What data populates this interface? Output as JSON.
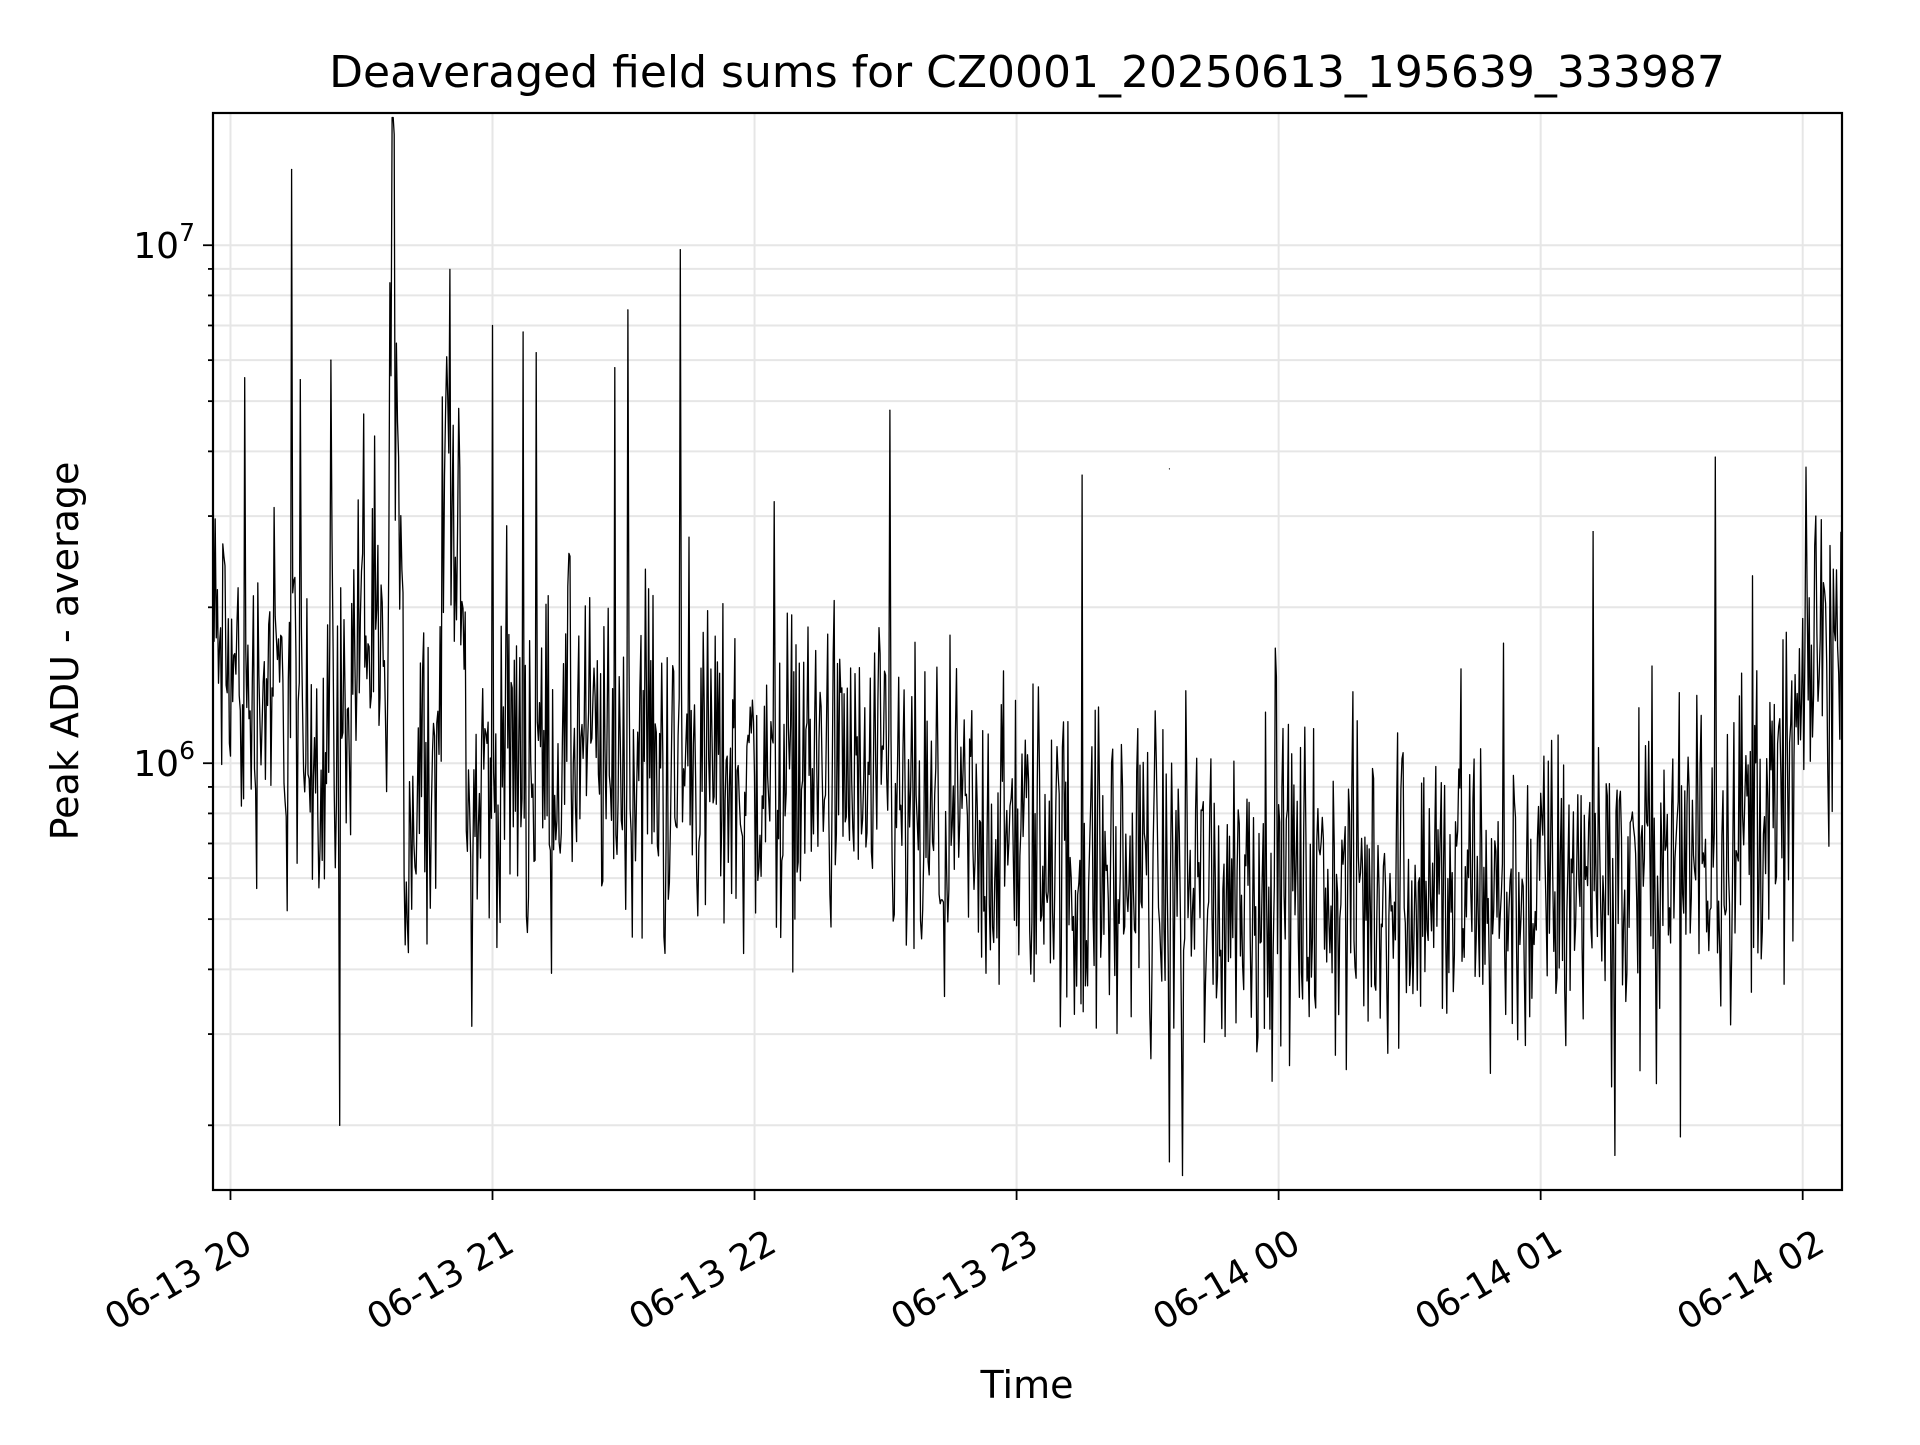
{
  "chart_data": {
    "type": "line",
    "title": "Deaveraged field sums for CZ0001_20250613_195639_333987",
    "xlabel": "Time",
    "ylabel": "Peak ADU - average",
    "yscale": "log",
    "grid": true,
    "legend": "none",
    "line_color": "#000000",
    "grid_color": "#e6e6e6",
    "xlim": [
      "06-13 19:56",
      "06-14 02:09"
    ],
    "ylim": [
      150000,
      18000000
    ],
    "x_tick_labels": [
      "06-13 20",
      "06-13 21",
      "06-13 22",
      "06-13 23",
      "06-14 00",
      "06-14 01",
      "06-14 02"
    ],
    "y_tick_labels": [
      {
        "base": "10",
        "exp": "6",
        "value": 1000000
      },
      {
        "base": "10",
        "exp": "7",
        "value": 10000000
      }
    ],
    "series": [
      {
        "x": [
          "06-13 19:56",
          "06-13 20:05",
          "06-13 20:10",
          "06-13 20:13",
          "06-13 20:14",
          "06-13 20:16",
          "06-13 20:20",
          "06-13 20:21",
          "06-13 20:23",
          "06-13 20:25",
          "06-13 20:30",
          "06-13 20:36",
          "06-13 20:37",
          "06-13 20:40",
          "06-13 20:45",
          "06-13 20:47",
          "06-13 20:50",
          "06-13 20:55",
          "06-13 20:58",
          "06-13 21:00",
          "06-13 21:03",
          "06-13 21:07",
          "06-13 21:08",
          "06-13 21:10",
          "06-13 21:15",
          "06-13 21:20",
          "06-13 21:25",
          "06-13 21:28",
          "06-13 21:29",
          "06-13 21:33",
          "06-13 21:36",
          "06-13 21:40",
          "06-13 21:42",
          "06-13 21:43",
          "06-13 21:50",
          "06-13 22:00",
          "06-13 22:06",
          "06-13 22:10",
          "06-13 22:14",
          "06-13 22:20",
          "06-13 22:28",
          "06-13 22:30",
          "06-13 22:31",
          "06-13 22:40",
          "06-13 22:50",
          "06-13 22:52",
          "06-13 22:55",
          "06-13 23:00",
          "06-13 23:05",
          "06-13 23:13",
          "06-13 23:15",
          "06-13 23:18",
          "06-13 23:25",
          "06-13 23:30",
          "06-13 23:34",
          "06-13 23:35",
          "06-13 23:36",
          "06-13 23:40",
          "06-13 23:45",
          "06-13 23:50",
          "06-14 00:00",
          "06-14 00:10",
          "06-14 00:14",
          "06-14 00:20",
          "06-14 00:30",
          "06-14 00:40",
          "06-14 00:50",
          "06-14 00:55",
          "06-14 01:00",
          "06-14 01:05",
          "06-14 01:09",
          "06-14 01:12",
          "06-14 01:20",
          "06-14 01:27",
          "06-14 01:30",
          "06-14 01:37",
          "06-14 01:40",
          "06-14 01:45",
          "06-14 01:50",
          "06-14 01:55",
          "06-14 02:00",
          "06-14 02:03",
          "06-14 02:05",
          "06-14 02:09"
        ],
        "y": [
          1700000,
          1300000,
          1500000,
          1100000,
          1800000,
          1000000,
          1200000,
          900000,
          1600000,
          1100000,
          2000000,
          1200000,
          14000000,
          700000,
          1200000,
          800000,
          6000000,
          700000,
          1000000,
          900000,
          1100000,
          1000000,
          900000,
          1000000,
          1000000,
          1100000,
          1000000,
          900000,
          900000,
          1000000,
          1000000,
          900000,
          900000,
          1000000,
          1000000,
          900000,
          900000,
          1000000,
          1000000,
          900000,
          800000,
          900000,
          800000,
          700000,
          700000,
          700000,
          700000,
          700000,
          700000,
          600000,
          600000,
          600000,
          600000,
          600000,
          600000,
          650000,
          600000,
          600000,
          550000,
          600000,
          600000,
          550000,
          550000,
          550000,
          600000,
          550000,
          550000,
          550000,
          550000,
          550000,
          550000,
          600000,
          600000,
          650000,
          650000,
          700000,
          700000,
          750000,
          800000,
          800000,
          1300000,
          1500000,
          1700000,
          1500000
        ],
        "peaks": [
          {
            "t": "06-13 20:14",
            "v": 14000000
          },
          {
            "t": "06-13 20:16",
            "v": 5500000
          },
          {
            "t": "06-13 20:23",
            "v": 6000000
          },
          {
            "t": "06-13 21:00",
            "v": 7000000
          },
          {
            "t": "06-13 21:07",
            "v": 6800000
          },
          {
            "t": "06-13 21:10",
            "v": 6200000
          },
          {
            "t": "06-13 21:28",
            "v": 5800000
          },
          {
            "t": "06-13 21:31",
            "v": 7500000
          },
          {
            "t": "06-13 21:43",
            "v": 9800000
          },
          {
            "t": "06-13 22:31",
            "v": 4800000
          },
          {
            "t": "06-13 23:15",
            "v": 3600000
          },
          {
            "t": "06-13 23:35",
            "v": 3700000
          },
          {
            "t": "06-14 01:12",
            "v": 2800000
          },
          {
            "t": "06-14 01:40",
            "v": 3900000
          },
          {
            "t": "06-14 02:03",
            "v": 3000000
          }
        ],
        "troughs": [
          {
            "t": "06-13 20:25",
            "v": 200000
          },
          {
            "t": "06-13 23:35",
            "v": 170000
          },
          {
            "t": "06-13 23:38",
            "v": 160000
          },
          {
            "t": "06-14 01:17",
            "v": 175000
          },
          {
            "t": "06-14 01:32",
            "v": 190000
          }
        ]
      }
    ]
  }
}
